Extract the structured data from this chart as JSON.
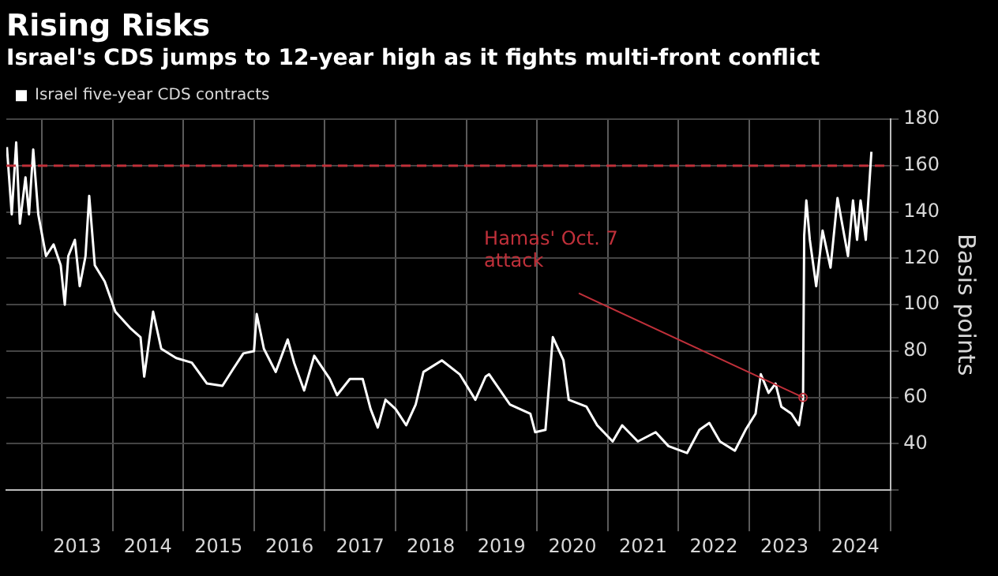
{
  "chart_data": {
    "type": "line",
    "title": "Rising Risks",
    "subtitle": "Israel's CDS jumps to 12-year high as it fights multi-front conflict",
    "ylabel": "Basis points",
    "legend": "top left",
    "grid": true,
    "marker": "none",
    "line_style": "solid",
    "x": [
      "2012-07-04",
      "2012-07-29",
      "2012-08-21",
      "2012-09-09",
      "2012-10-08",
      "2012-10-26",
      "2012-11-17",
      "2012-12-13",
      "2013-01-22",
      "2013-03-02",
      "2013-04-08",
      "2013-04-29",
      "2013-05-17",
      "2013-06-20",
      "2013-07-15",
      "2013-08-14",
      "2013-09-02",
      "2013-10-01",
      "2013-11-21",
      "2014-01-15",
      "2014-04-01",
      "2014-05-25",
      "2014-06-13",
      "2014-07-29",
      "2014-09-09",
      "2014-11-25",
      "2015-02-14",
      "2015-05-03",
      "2015-07-22",
      "2015-09-13",
      "2015-11-07",
      "2016-01-01",
      "2016-01-15",
      "2016-02-21",
      "2016-04-22",
      "2016-06-23",
      "2016-07-26",
      "2016-09-16",
      "2016-11-07",
      "2017-01-26",
      "2017-03-05",
      "2017-05-10",
      "2017-07-15",
      "2017-08-25",
      "2017-10-01",
      "2017-11-10",
      "2018-01-01",
      "2018-02-25",
      "2018-04-15",
      "2018-05-25",
      "2018-08-28",
      "2018-11-28",
      "2019-02-17",
      "2019-04-11",
      "2019-04-29",
      "2019-08-14",
      "2019-11-28",
      "2019-12-23",
      "2020-02-14",
      "2020-03-23",
      "2020-05-17",
      "2020-06-13",
      "2020-09-13",
      "2020-11-07",
      "2021-01-26",
      "2021-03-16",
      "2021-06-05",
      "2021-09-05",
      "2021-11-10",
      "2022-02-14",
      "2022-04-19",
      "2022-06-09",
      "2022-08-03",
      "2022-10-19",
      "2022-12-13",
      "2023-02-03",
      "2023-03-02",
      "2023-04-11",
      "2023-05-17",
      "2023-06-16",
      "2023-08-07",
      "2023-09-15",
      "2023-10-06",
      "2023-10-12",
      "2023-10-23",
      "2023-11-10",
      "2023-12-13",
      "2024-01-15",
      "2024-02-25",
      "2024-04-01",
      "2024-05-25",
      "2024-06-20",
      "2024-07-11",
      "2024-07-29",
      "2024-08-25",
      "2024-09-23"
    ],
    "series": [
      {
        "name": "Israel five-year CDS contracts",
        "color": "#ffffff",
        "values": [
          168,
          139,
          170,
          135,
          155,
          139,
          167,
          139,
          121,
          126,
          117,
          100,
          121,
          128,
          108,
          121,
          147,
          117,
          110,
          97,
          90,
          86,
          69,
          97,
          81,
          77,
          75,
          66,
          65,
          72,
          79,
          80,
          96,
          81,
          71,
          85,
          75,
          63,
          78,
          68,
          61,
          68,
          68,
          55,
          47,
          59,
          55,
          48,
          57,
          71,
          76,
          70,
          59,
          69,
          70,
          57,
          53,
          45,
          46,
          86,
          76,
          59,
          56,
          48,
          41,
          48,
          41,
          45,
          39,
          36,
          46,
          49,
          41,
          37,
          46,
          53,
          70,
          62,
          66,
          56,
          53,
          48,
          59,
          130,
          145,
          128,
          108,
          132,
          116,
          146,
          121,
          145,
          128,
          145,
          128,
          166
        ]
      }
    ],
    "ylim": [
      20,
      180
    ],
    "yticks": [
      {
        "value": 20,
        "label": null
      },
      40,
      60,
      80,
      100,
      120,
      140,
      160,
      180
    ],
    "xlim": [
      "2012-07-01",
      "2025-01-01"
    ],
    "xticks": [
      {
        "value": "2013-01-01",
        "label": null
      },
      {
        "value": "2013-07-02",
        "label": "2013"
      },
      {
        "value": "2014-01-01",
        "label": null
      },
      {
        "value": "2014-07-02",
        "label": "2014"
      },
      {
        "value": "2015-01-01",
        "label": null
      },
      {
        "value": "2015-07-02",
        "label": "2015"
      },
      {
        "value": "2016-01-01",
        "label": null
      },
      {
        "value": "2016-07-02",
        "label": "2016"
      },
      {
        "value": "2017-01-01",
        "label": null
      },
      {
        "value": "2017-07-02",
        "label": "2017"
      },
      {
        "value": "2018-01-01",
        "label": null
      },
      {
        "value": "2018-07-02",
        "label": "2018"
      },
      {
        "value": "2019-01-01",
        "label": null
      },
      {
        "value": "2019-07-02",
        "label": "2019"
      },
      {
        "value": "2020-01-01",
        "label": null
      },
      {
        "value": "2020-07-02",
        "label": "2020"
      },
      {
        "value": "2021-01-01",
        "label": null
      },
      {
        "value": "2021-07-02",
        "label": "2021"
      },
      {
        "value": "2022-01-01",
        "label": null
      },
      {
        "value": "2022-07-02",
        "label": "2022"
      },
      {
        "value": "2023-01-01",
        "label": null
      },
      {
        "value": "2023-07-02",
        "label": "2023"
      },
      {
        "value": "2024-01-01",
        "label": null
      },
      {
        "value": "2024-07-02",
        "label": "2024"
      },
      {
        "value": "2025-01-01",
        "label": null
      }
    ],
    "ref_lines": [
      {
        "axis": "y",
        "value": 160,
        "color": "#c0303a",
        "line_style": "dashed"
      }
    ],
    "annotations": [
      {
        "text": "Hamas' Oct. 7\nattack",
        "x": "2023-10-06",
        "y": 60
      }
    ]
  }
}
